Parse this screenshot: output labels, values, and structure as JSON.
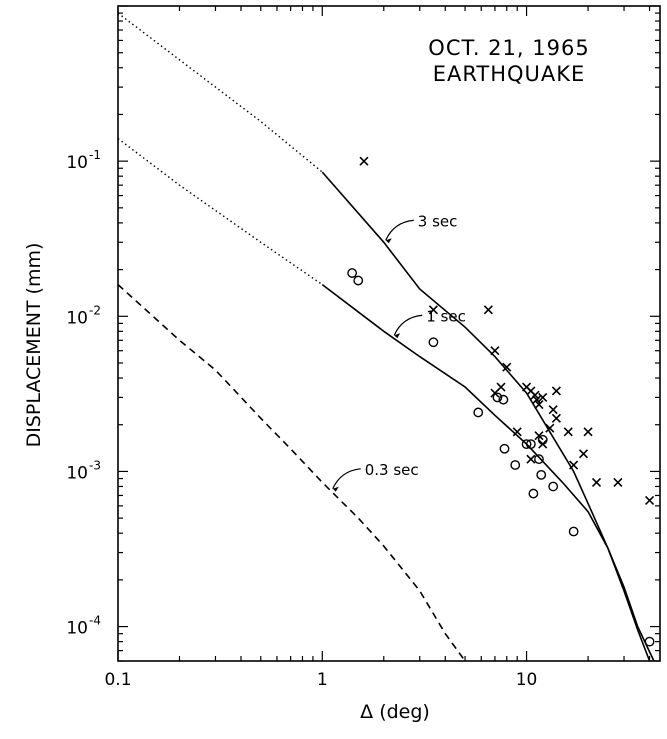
{
  "chart_data": {
    "type": "scatter",
    "title_lines": [
      "OCT. 21, 1965",
      "EARTHQUAKE"
    ],
    "xlabel": "Δ (deg)",
    "ylabel": "DISPLACEMENT (mm)",
    "x_scale": "log",
    "y_scale": "log",
    "xlim": [
      0.1,
      45
    ],
    "ylim": [
      6e-05,
      1.0
    ],
    "grid": false,
    "x_ticks": [
      {
        "value": 0.1,
        "label": "0.1"
      },
      {
        "value": 1,
        "label": "1"
      },
      {
        "value": 10,
        "label": "10"
      }
    ],
    "y_ticks": [
      {
        "value": 0.1,
        "label": "10",
        "exp": "-1"
      },
      {
        "value": 0.01,
        "label": "10",
        "exp": "-2"
      },
      {
        "value": 0.001,
        "label": "10",
        "exp": "-3"
      },
      {
        "value": 0.0001,
        "label": "10",
        "exp": "-4"
      }
    ],
    "curves": [
      {
        "label": "3 sec",
        "style": "solid",
        "extrapolated_style": "dotted",
        "extrapolated_below_x": 1.0,
        "points": [
          [
            0.1,
            0.9
          ],
          [
            0.2,
            0.45
          ],
          [
            0.5,
            0.18
          ],
          [
            1,
            0.085
          ],
          [
            2,
            0.03
          ],
          [
            3,
            0.015
          ],
          [
            5,
            0.0085
          ],
          [
            7,
            0.0055
          ],
          [
            10,
            0.0032
          ],
          [
            13,
            0.0018
          ],
          [
            17,
            0.001
          ],
          [
            20,
            0.00062
          ],
          [
            25,
            0.00032
          ],
          [
            30,
            0.00017
          ],
          [
            35,
            9.5e-05
          ],
          [
            40,
            6e-05
          ]
        ]
      },
      {
        "label": "1 sec",
        "style": "solid",
        "extrapolated_style": "dotted",
        "extrapolated_below_x": 1.0,
        "points": [
          [
            0.1,
            0.14
          ],
          [
            0.2,
            0.07
          ],
          [
            0.5,
            0.03
          ],
          [
            1,
            0.016
          ],
          [
            2,
            0.008
          ],
          [
            3,
            0.0055
          ],
          [
            5,
            0.0035
          ],
          [
            7,
            0.0023
          ],
          [
            10,
            0.0015
          ],
          [
            15,
            0.00085
          ],
          [
            20,
            0.00055
          ],
          [
            25,
            0.00032
          ],
          [
            30,
            0.00018
          ],
          [
            35,
            0.0001
          ],
          [
            42,
            6e-05
          ]
        ]
      },
      {
        "label": "0.3 sec",
        "style": "dashed",
        "points": [
          [
            0.1,
            0.016
          ],
          [
            0.2,
            0.007
          ],
          [
            0.3,
            0.0045
          ],
          [
            0.5,
            0.0022
          ],
          [
            0.7,
            0.0014
          ],
          [
            1,
            0.00085
          ],
          [
            1.5,
            0.0005
          ],
          [
            2,
            0.00033
          ],
          [
            3,
            0.00017
          ],
          [
            4,
            9e-05
          ],
          [
            5,
            6e-05
          ]
        ]
      }
    ],
    "series": [
      {
        "name": "x",
        "marker": "x",
        "points": [
          [
            1.6,
            0.1
          ],
          [
            3.5,
            0.011
          ],
          [
            6.5,
            0.011
          ],
          [
            7,
            0.006
          ],
          [
            7.5,
            0.0035
          ],
          [
            8,
            0.0047
          ],
          [
            7,
            0.0032
          ],
          [
            9,
            0.0018
          ],
          [
            10,
            0.0035
          ],
          [
            10.5,
            0.0033
          ],
          [
            11,
            0.0031
          ],
          [
            11.2,
            0.0029
          ],
          [
            11.5,
            0.0027
          ],
          [
            12,
            0.003
          ],
          [
            11.5,
            0.0017
          ],
          [
            12,
            0.0015
          ],
          [
            10.5,
            0.0012
          ],
          [
            13,
            0.0019
          ],
          [
            13.5,
            0.0025
          ],
          [
            14,
            0.0033
          ],
          [
            14,
            0.0022
          ],
          [
            16,
            0.0018
          ],
          [
            17,
            0.0011
          ],
          [
            19,
            0.0013
          ],
          [
            20,
            0.0018
          ],
          [
            22,
            0.00085
          ],
          [
            28,
            0.00085
          ],
          [
            40,
            0.00065
          ]
        ]
      },
      {
        "name": "o",
        "marker": "circle",
        "points": [
          [
            1.4,
            0.019
          ],
          [
            1.5,
            0.017
          ],
          [
            3.5,
            0.0068
          ],
          [
            5.8,
            0.0024
          ],
          [
            7.2,
            0.003
          ],
          [
            7.7,
            0.0029
          ],
          [
            7.8,
            0.0014
          ],
          [
            8.8,
            0.0011
          ],
          [
            10,
            0.0015
          ],
          [
            10.5,
            0.0015
          ],
          [
            11.5,
            0.0012
          ],
          [
            11.8,
            0.00095
          ],
          [
            10.8,
            0.00072
          ],
          [
            13.5,
            0.0008
          ],
          [
            12,
            0.0016
          ],
          [
            17,
            0.00041
          ],
          [
            40,
            8e-05
          ]
        ]
      }
    ],
    "annotations": [
      {
        "text": "3 sec",
        "curve": "3 sec",
        "at_x": 2.0
      },
      {
        "text": "1 sec",
        "curve": "1 sec",
        "at_x": 2.2
      },
      {
        "text": "0.3 sec",
        "curve": "0.3 sec",
        "at_x": 1.1
      }
    ]
  }
}
